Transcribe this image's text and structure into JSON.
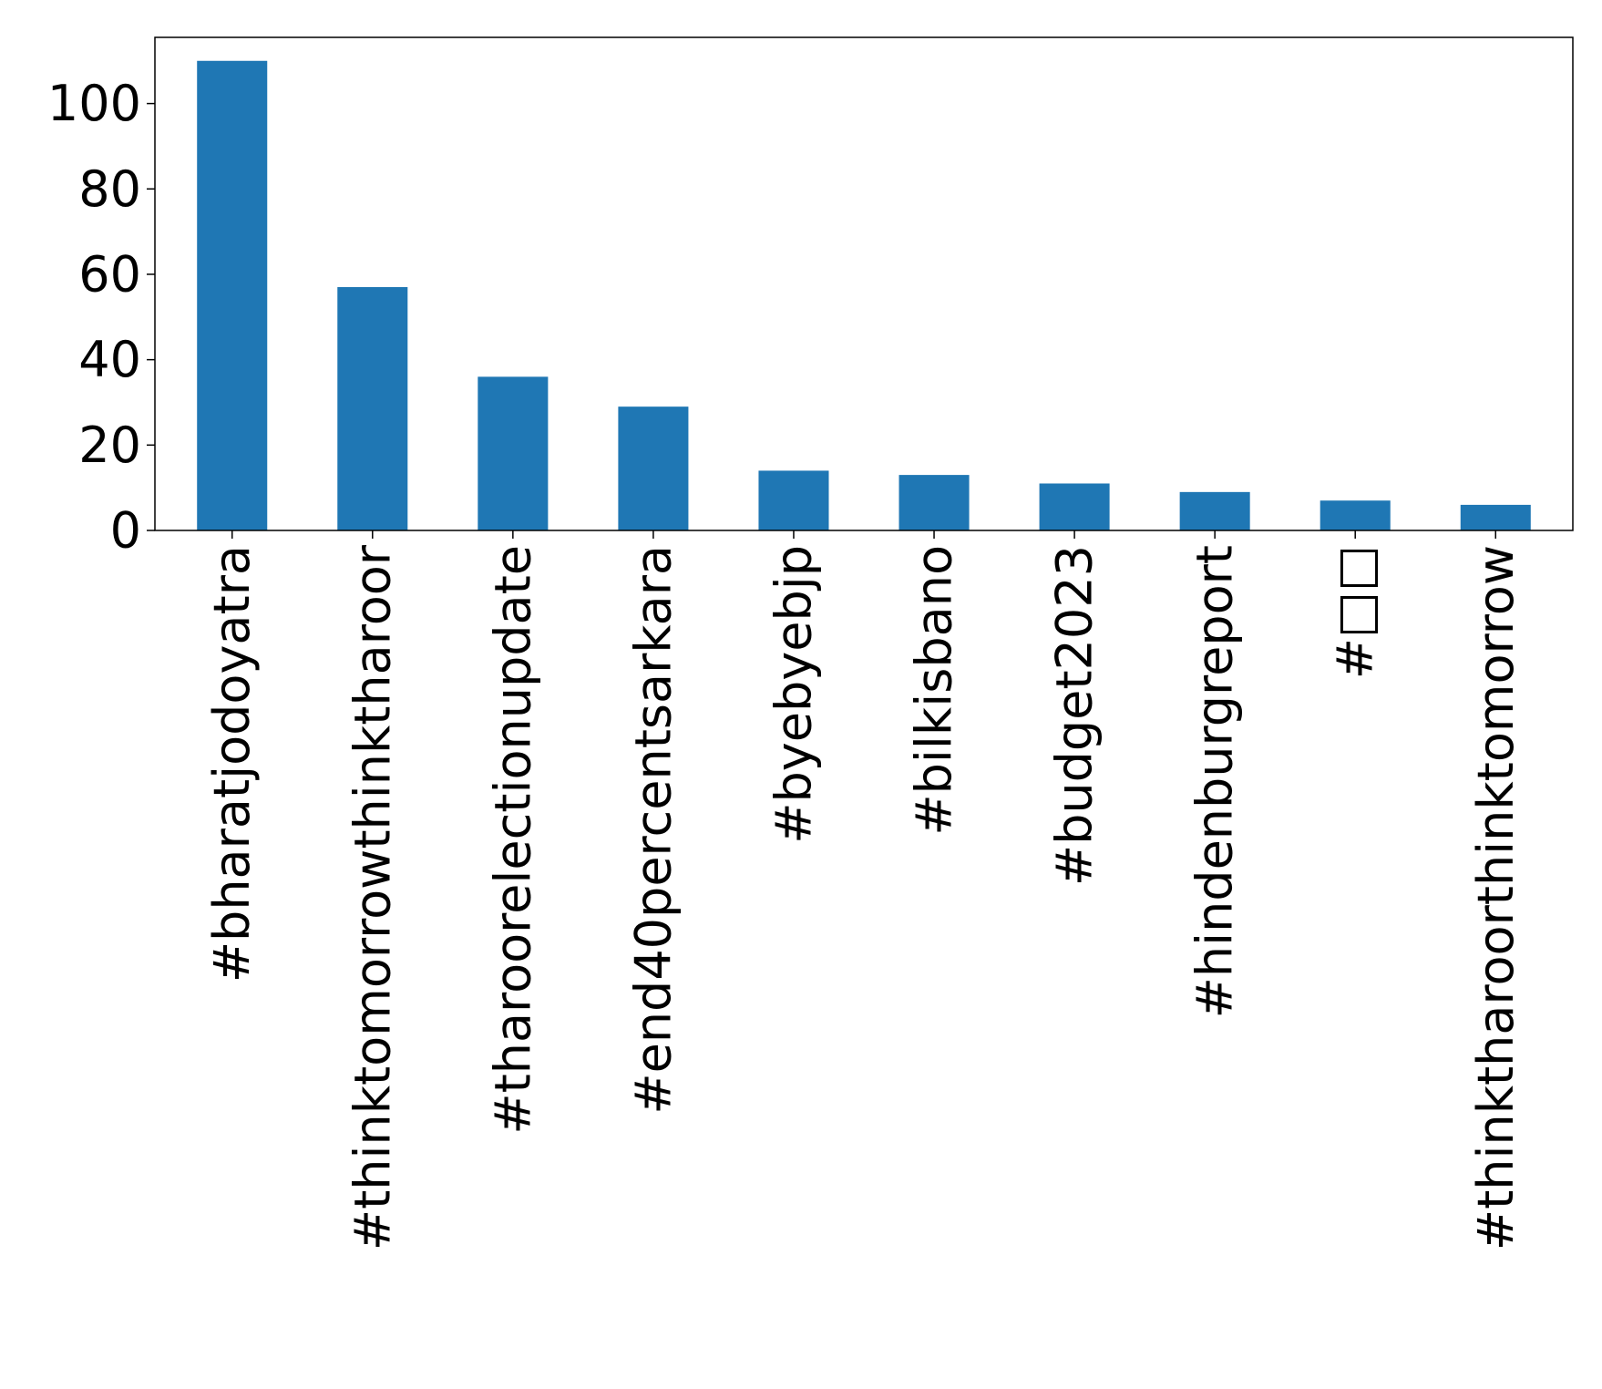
{
  "chart_data": {
    "type": "bar",
    "title": "",
    "xlabel": "",
    "ylabel": "",
    "categories": [
      "#bharatjodoyatra",
      "#thinktomorrowthinktharoor",
      "#tharoorelectionupdate",
      "#end40percentsarkara",
      "#byebyebjp",
      "#bilkisbano",
      "#budget2023",
      "#hindenburgreport",
      "#□□",
      "#thinktharoorthinktomorrow"
    ],
    "values": [
      110,
      57,
      36,
      29,
      14,
      13,
      11,
      9,
      7,
      6
    ],
    "ylim": [
      0,
      115.5
    ],
    "yticks": [
      0,
      20,
      40,
      60,
      80,
      100
    ],
    "bar_color": "#1f77b4",
    "grid": false,
    "legend": "none"
  }
}
